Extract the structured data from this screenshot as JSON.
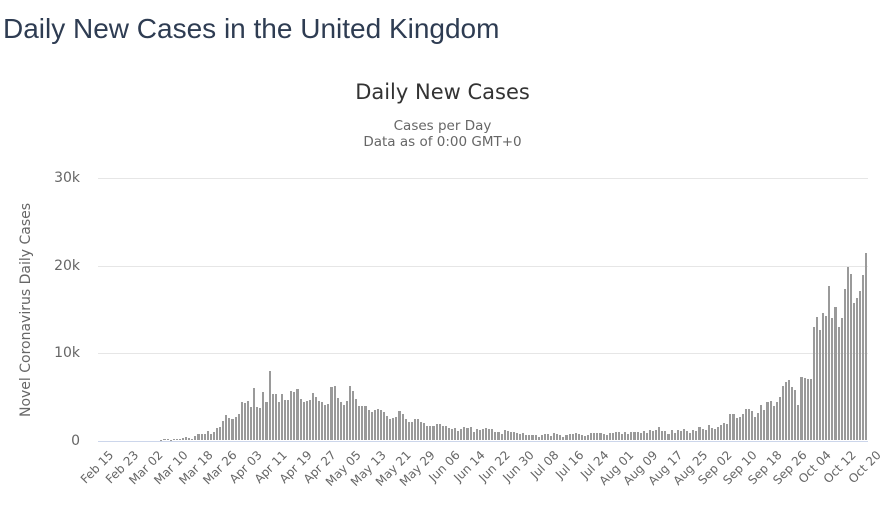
{
  "page": {
    "title": "Daily New Cases in the United Kingdom"
  },
  "colors": {
    "page_title": "#2e3c52",
    "chart_title": "#333333",
    "muted_text": "#666666",
    "bar": "#9a9a9a",
    "gridline": "#e6e6e6",
    "axis_line": "#ccd6eb"
  },
  "chart_data": {
    "type": "bar",
    "title": "Daily New Cases",
    "subtitle_lines": [
      "Cases per Day",
      "Data as of 0:00 GMT+0"
    ],
    "ylabel": "Novel Coronavirus Daily Cases",
    "xlabel": "",
    "ylim": [
      0,
      30000
    ],
    "grid": true,
    "legend_position": "none",
    "y_ticks": [
      {
        "value": 0,
        "label": "0"
      },
      {
        "value": 10000,
        "label": "10k"
      },
      {
        "value": 20000,
        "label": "20k"
      },
      {
        "value": 30000,
        "label": "30k"
      }
    ],
    "start_date": "Feb 15",
    "end_date": "Oct 20",
    "x_tick_every_days": 8,
    "x_tick_labels": [
      "Feb 15",
      "Feb 23",
      "Mar 02",
      "Mar 10",
      "Mar 18",
      "Mar 26",
      "Apr 03",
      "Apr 11",
      "Apr 19",
      "Apr 27",
      "May 05",
      "May 13",
      "May 21",
      "May 29",
      "Jun 06",
      "Jun 14",
      "Jun 22",
      "Jun 30",
      "Jul 08",
      "Jul 16",
      "Jul 24",
      "Aug 01",
      "Aug 09",
      "Aug 17",
      "Aug 25",
      "Sep 02",
      "Sep 10",
      "Sep 18",
      "Sep 26",
      "Oct 04",
      "Oct 12",
      "Oct 20"
    ],
    "values": [
      0,
      0,
      0,
      0,
      0,
      0,
      0,
      0,
      4,
      0,
      0,
      0,
      0,
      3,
      2,
      13,
      3,
      12,
      34,
      29,
      46,
      60,
      64,
      43,
      61,
      74,
      130,
      208,
      342,
      232,
      171,
      407,
      680,
      643,
      706,
      1035,
      665,
      967,
      1427,
      1452,
      2129,
      2890,
      2546,
      2433,
      2665,
      3009,
      4324,
      4244,
      4450,
      3735,
      5903,
      3802,
      3634,
      5491,
      4344,
      7860,
      5233,
      5288,
      4342,
      5252,
      4603,
      4617,
      5599,
      5525,
      5850,
      4676,
      4301,
      4451,
      4583,
      5386,
      4913,
      4463,
      4310,
      3996,
      4076,
      6032,
      6201,
      4806,
      4339,
      3985,
      4406,
      6111,
      5614,
      4649,
      3896,
      3923,
      3877,
      3403,
      3242,
      3446,
      3560,
      3451,
      3142,
      2684,
      2412,
      2472,
      2615,
      3287,
      2959,
      2405,
      2004,
      2013,
      2412,
      2445,
      2095,
      1936,
      1604,
      1570,
      1653,
      1871,
      1805,
      1650,
      1557,
      1326,
      1205,
      1387,
      1003,
      1266,
      1541,
      1425,
      1514,
      968,
      1279,
      1115,
      1218,
      1346,
      1295,
      1221,
      958,
      874,
      653,
      1118,
      1006,
      890,
      901,
      815,
      689,
      829,
      576,
      544,
      624,
      516,
      352,
      581,
      630,
      642,
      512,
      820,
      650,
      530,
      398,
      538,
      642,
      687,
      827,
      726,
      580,
      445,
      560,
      770,
      768,
      767,
      747,
      685,
      581,
      763,
      846,
      880,
      880,
      743,
      938,
      670,
      892,
      950,
      871,
      758,
      1062,
      816,
      1148,
      1009,
      1129,
      1441,
      1077,
      1040,
      634,
      1089,
      812,
      1182,
      1033,
      1288,
      1041,
      853,
      1184,
      1048,
      1522,
      1276,
      1108,
      1715,
      1406,
      1295,
      1508,
      1735,
      1940,
      1813,
      2988,
      2948,
      2460,
      2659,
      2919,
      3539,
      3497,
      3330,
      2621,
      3105,
      3991,
      3395,
      4322,
      4422,
      3899,
      4368,
      4926,
      6178,
      6634,
      6874,
      6042,
      5693,
      4044,
      7143,
      7108,
      6914,
      6968,
      12872,
      14000,
      12594,
      14542,
      14162,
      17540,
      13864,
      15166,
      12872,
      13972,
      17234,
      19724,
      18980,
      15650,
      16171,
      16982,
      18804,
      21331
    ]
  }
}
